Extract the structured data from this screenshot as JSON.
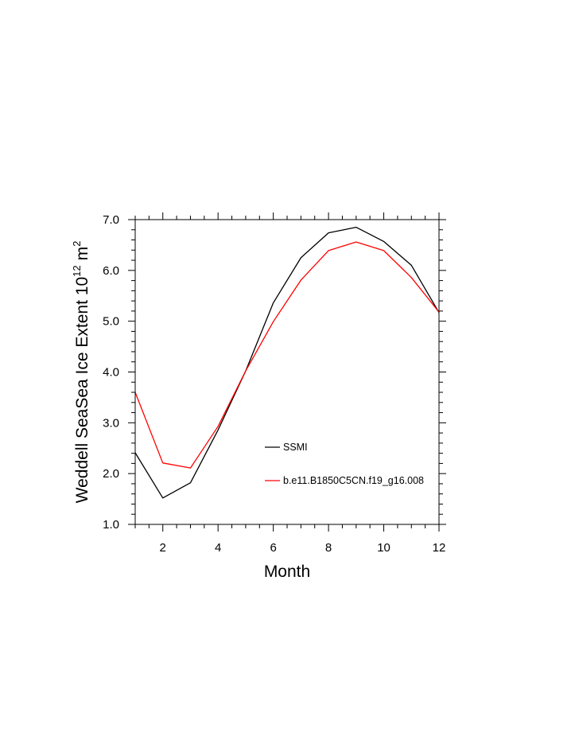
{
  "chart_data": {
    "type": "line",
    "title": "",
    "xlabel": "Month",
    "ylabel": "Weddell SeaSea Ice Extent 10",
    "ylabel_superscript": "12",
    "ylabel_unit": "m",
    "ylabel_unit_superscript": "2",
    "xlim": [
      1,
      12
    ],
    "ylim": [
      1.0,
      7.0
    ],
    "x_ticks": [
      2,
      4,
      6,
      8,
      10,
      12
    ],
    "x_tick_labels": [
      "2",
      "4",
      "6",
      "8",
      "10",
      "12"
    ],
    "y_ticks": [
      1.0,
      2.0,
      3.0,
      4.0,
      5.0,
      6.0,
      7.0
    ],
    "y_tick_labels": [
      "1.0",
      "2.0",
      "3.0",
      "4.0",
      "5.0",
      "6.0",
      "7.0"
    ],
    "grid": false,
    "legend_position": "center-right",
    "x": [
      1,
      2,
      3,
      4,
      5,
      6,
      7,
      8,
      9,
      10,
      11,
      12
    ],
    "series": [
      {
        "name": "SSMI",
        "color": "#000000",
        "values": [
          2.41,
          1.52,
          1.82,
          2.86,
          4.02,
          5.36,
          6.25,
          6.74,
          6.85,
          6.57,
          6.1,
          5.17
        ]
      },
      {
        "name": "b.e11.B1850C5CN.f19_g16.008",
        "color": "#ff0000",
        "values": [
          3.6,
          2.21,
          2.11,
          2.93,
          4.02,
          4.99,
          5.81,
          6.39,
          6.56,
          6.39,
          5.86,
          5.18
        ]
      }
    ]
  }
}
